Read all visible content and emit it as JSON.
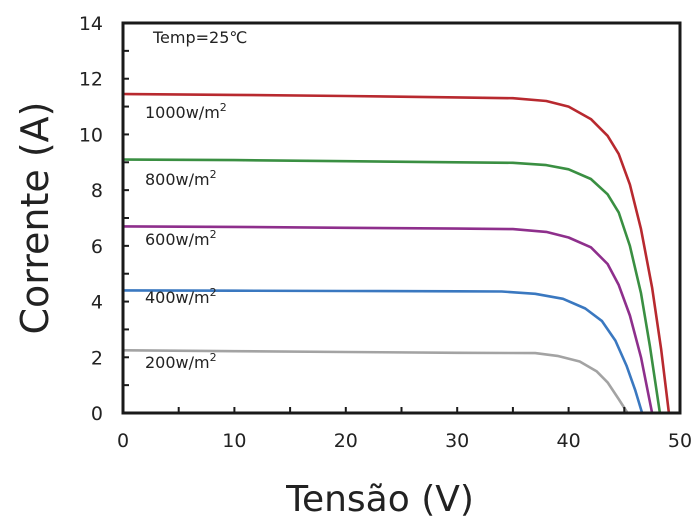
{
  "chart_data": {
    "type": "line",
    "title": "",
    "xlabel": "Tensão (V)",
    "ylabel": "Corrente (A)",
    "xlim": [
      0,
      50
    ],
    "ylim": [
      0,
      14
    ],
    "x_ticks": [
      0,
      10,
      20,
      30,
      40,
      50
    ],
    "y_ticks": [
      0,
      2,
      4,
      6,
      8,
      10,
      12,
      14
    ],
    "grid": false,
    "annotation": "Temp=25",
    "annotation_unit": "℃",
    "series": [
      {
        "name": "1000w/m",
        "name_sup": "2",
        "color": "#b8292f",
        "points": [
          [
            0,
            11.45
          ],
          [
            10,
            11.42
          ],
          [
            20,
            11.38
          ],
          [
            30,
            11.33
          ],
          [
            35,
            11.3
          ],
          [
            38,
            11.2
          ],
          [
            40,
            11.0
          ],
          [
            42,
            10.55
          ],
          [
            43.5,
            9.95
          ],
          [
            44.5,
            9.3
          ],
          [
            45.5,
            8.2
          ],
          [
            46.5,
            6.6
          ],
          [
            47.5,
            4.5
          ],
          [
            48.3,
            2.3
          ],
          [
            49.0,
            0
          ]
        ]
      },
      {
        "name": "800w/m",
        "name_sup": "2",
        "color": "#3a8f42",
        "points": [
          [
            0,
            9.1
          ],
          [
            10,
            9.08
          ],
          [
            20,
            9.04
          ],
          [
            30,
            9.0
          ],
          [
            35,
            8.98
          ],
          [
            38,
            8.9
          ],
          [
            40,
            8.75
          ],
          [
            42,
            8.4
          ],
          [
            43.5,
            7.85
          ],
          [
            44.5,
            7.2
          ],
          [
            45.5,
            6.0
          ],
          [
            46.5,
            4.3
          ],
          [
            47.3,
            2.4
          ],
          [
            48.2,
            0
          ]
        ]
      },
      {
        "name": "600w/m",
        "name_sup": "2",
        "color": "#8e2f8c",
        "points": [
          [
            0,
            6.7
          ],
          [
            10,
            6.68
          ],
          [
            20,
            6.65
          ],
          [
            30,
            6.62
          ],
          [
            35,
            6.6
          ],
          [
            38,
            6.5
          ],
          [
            40,
            6.3
          ],
          [
            42,
            5.95
          ],
          [
            43.5,
            5.35
          ],
          [
            44.5,
            4.6
          ],
          [
            45.5,
            3.5
          ],
          [
            46.5,
            2.0
          ],
          [
            47.5,
            0
          ]
        ]
      },
      {
        "name": "400w/m",
        "name_sup": "2",
        "color": "#3a78c0",
        "points": [
          [
            0,
            4.4
          ],
          [
            10,
            4.39
          ],
          [
            20,
            4.38
          ],
          [
            30,
            4.37
          ],
          [
            34,
            4.36
          ],
          [
            37,
            4.28
          ],
          [
            39.5,
            4.1
          ],
          [
            41.5,
            3.75
          ],
          [
            43,
            3.3
          ],
          [
            44.2,
            2.6
          ],
          [
            45.2,
            1.7
          ],
          [
            46.0,
            0.8
          ],
          [
            46.6,
            0
          ]
        ]
      },
      {
        "name": "200w/m",
        "name_sup": "2",
        "color": "#a3a3a3",
        "points": [
          [
            0,
            2.25
          ],
          [
            10,
            2.22
          ],
          [
            20,
            2.19
          ],
          [
            30,
            2.16
          ],
          [
            37,
            2.15
          ],
          [
            39,
            2.05
          ],
          [
            41,
            1.85
          ],
          [
            42.5,
            1.5
          ],
          [
            43.5,
            1.1
          ],
          [
            44.5,
            0.5
          ],
          [
            45.3,
            0
          ]
        ]
      }
    ]
  }
}
